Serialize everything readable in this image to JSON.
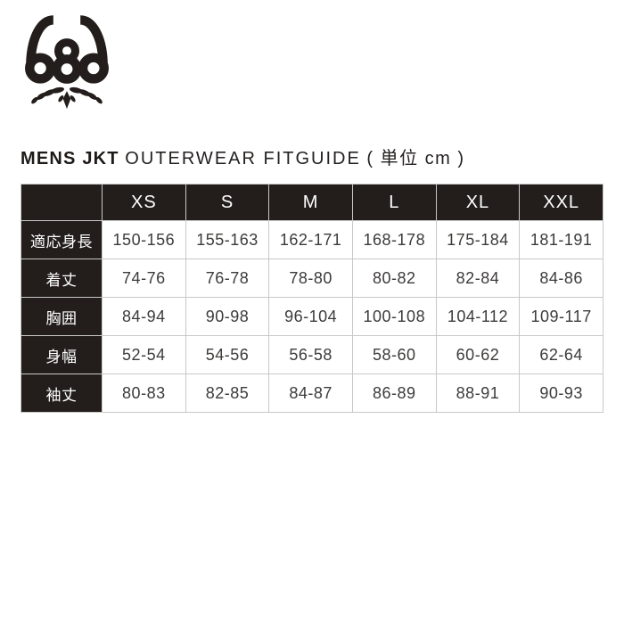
{
  "logo": {
    "text": "686",
    "description": "686 logo with laurel wreath"
  },
  "title": {
    "bold": "MENS JKT",
    "regular": "OUTERWEAR FITGUIDE",
    "unit": "( 単位 cm )"
  },
  "table": {
    "columns": [
      "",
      "XS",
      "S",
      "M",
      "L",
      "XL",
      "XXL"
    ],
    "rows": [
      {
        "label": "適応身長",
        "values": [
          "150-156",
          "155-163",
          "162-171",
          "168-178",
          "175-184",
          "181-191"
        ]
      },
      {
        "label": "着丈",
        "values": [
          "74-76",
          "76-78",
          "78-80",
          "80-82",
          "82-84",
          "84-86"
        ]
      },
      {
        "label": "胸囲",
        "values": [
          "84-94",
          "90-98",
          "96-104",
          "100-108",
          "104-112",
          "109-117"
        ]
      },
      {
        "label": "身幅",
        "values": [
          "52-54",
          "54-56",
          "56-58",
          "58-60",
          "60-62",
          "62-64"
        ]
      },
      {
        "label": "袖丈",
        "values": [
          "80-83",
          "82-85",
          "84-87",
          "86-89",
          "88-91",
          "90-93"
        ]
      }
    ]
  },
  "colors": {
    "ink": "#231e1b",
    "cell_border": "#c8c8c8",
    "value_text": "#3d3b3a",
    "background": "#ffffff"
  }
}
